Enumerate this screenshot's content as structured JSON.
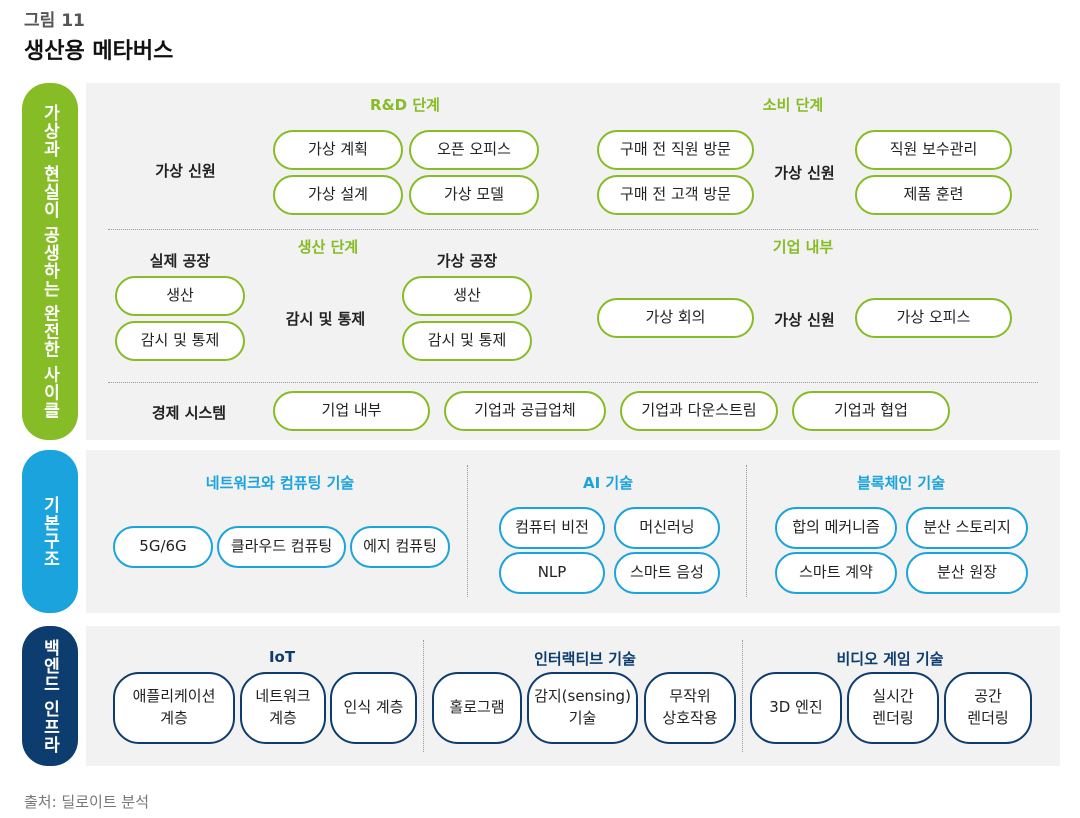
{
  "figure": {
    "number": "그림 11",
    "title": "생산용 메타버스",
    "source": "출처: 딜로이트 분석"
  },
  "colors": {
    "green": "#86bc25",
    "blue": "#1ba3dd",
    "navy": "#0d3c6e",
    "panel": "#f2f2f2"
  },
  "layer1": {
    "side_label": "가상과 현실이 공생하는 완전한 사이클",
    "rd": {
      "header": "R&D 단계",
      "row_label": "가상 신원",
      "items": [
        "가상 계획",
        "오픈 오피스",
        "가상 설계",
        "가상 모델"
      ]
    },
    "consume": {
      "header": "소비 단계",
      "items": [
        "구매 전 직원 방문",
        "구매 전 고객 방문"
      ],
      "mid_label": "가상 신원",
      "items2": [
        "직원 보수관리",
        "제품 훈련"
      ]
    },
    "production": {
      "header": "생산 단계",
      "real_label": "실제 공장",
      "real_items": [
        "생산",
        "감시 및 통제"
      ],
      "mid_label": "감시 및 통제",
      "virtual_label": "가상 공장",
      "virtual_items": [
        "생산",
        "감시 및 통제"
      ]
    },
    "internal": {
      "header": "기업 내부",
      "items": [
        "가상 회의"
      ],
      "mid_label": "가상 신원",
      "items2": [
        "가상 오피스"
      ]
    },
    "economy": {
      "label": "경제 시스템",
      "items": [
        "기업 내부",
        "기업과 공급업체",
        "기업과 다운스트림",
        "기업과 협업"
      ]
    }
  },
  "layer2": {
    "side_label": "기본구조",
    "network": {
      "header": "네트워크와 컴퓨팅 기술",
      "items": [
        "5G/6G",
        "클라우드 컴퓨팅",
        "에지 컴퓨팅"
      ]
    },
    "ai": {
      "header": "AI 기술",
      "items": [
        "컴퓨터 비전",
        "머신러닝",
        "NLP",
        "스마트 음성"
      ]
    },
    "blockchain": {
      "header": "블록체인 기술",
      "items": [
        "합의 메커니즘",
        "분산 스토리지",
        "스마트 계약",
        "분산 원장"
      ]
    }
  },
  "layer3": {
    "side_label": "백엔드 인프라",
    "iot": {
      "header": "IoT",
      "items": [
        "애플리케이션\n계층",
        "네트워크\n계층",
        "인식 계층"
      ]
    },
    "interactive": {
      "header": "인터랙티브 기술",
      "items": [
        "홀로그램",
        "감지(sensing)\n기술",
        "무작위\n상호작용"
      ]
    },
    "video": {
      "header": "비디오 게임 기술",
      "items": [
        "3D 엔진",
        "실시간\n렌더링",
        "공간\n렌더링"
      ]
    }
  }
}
